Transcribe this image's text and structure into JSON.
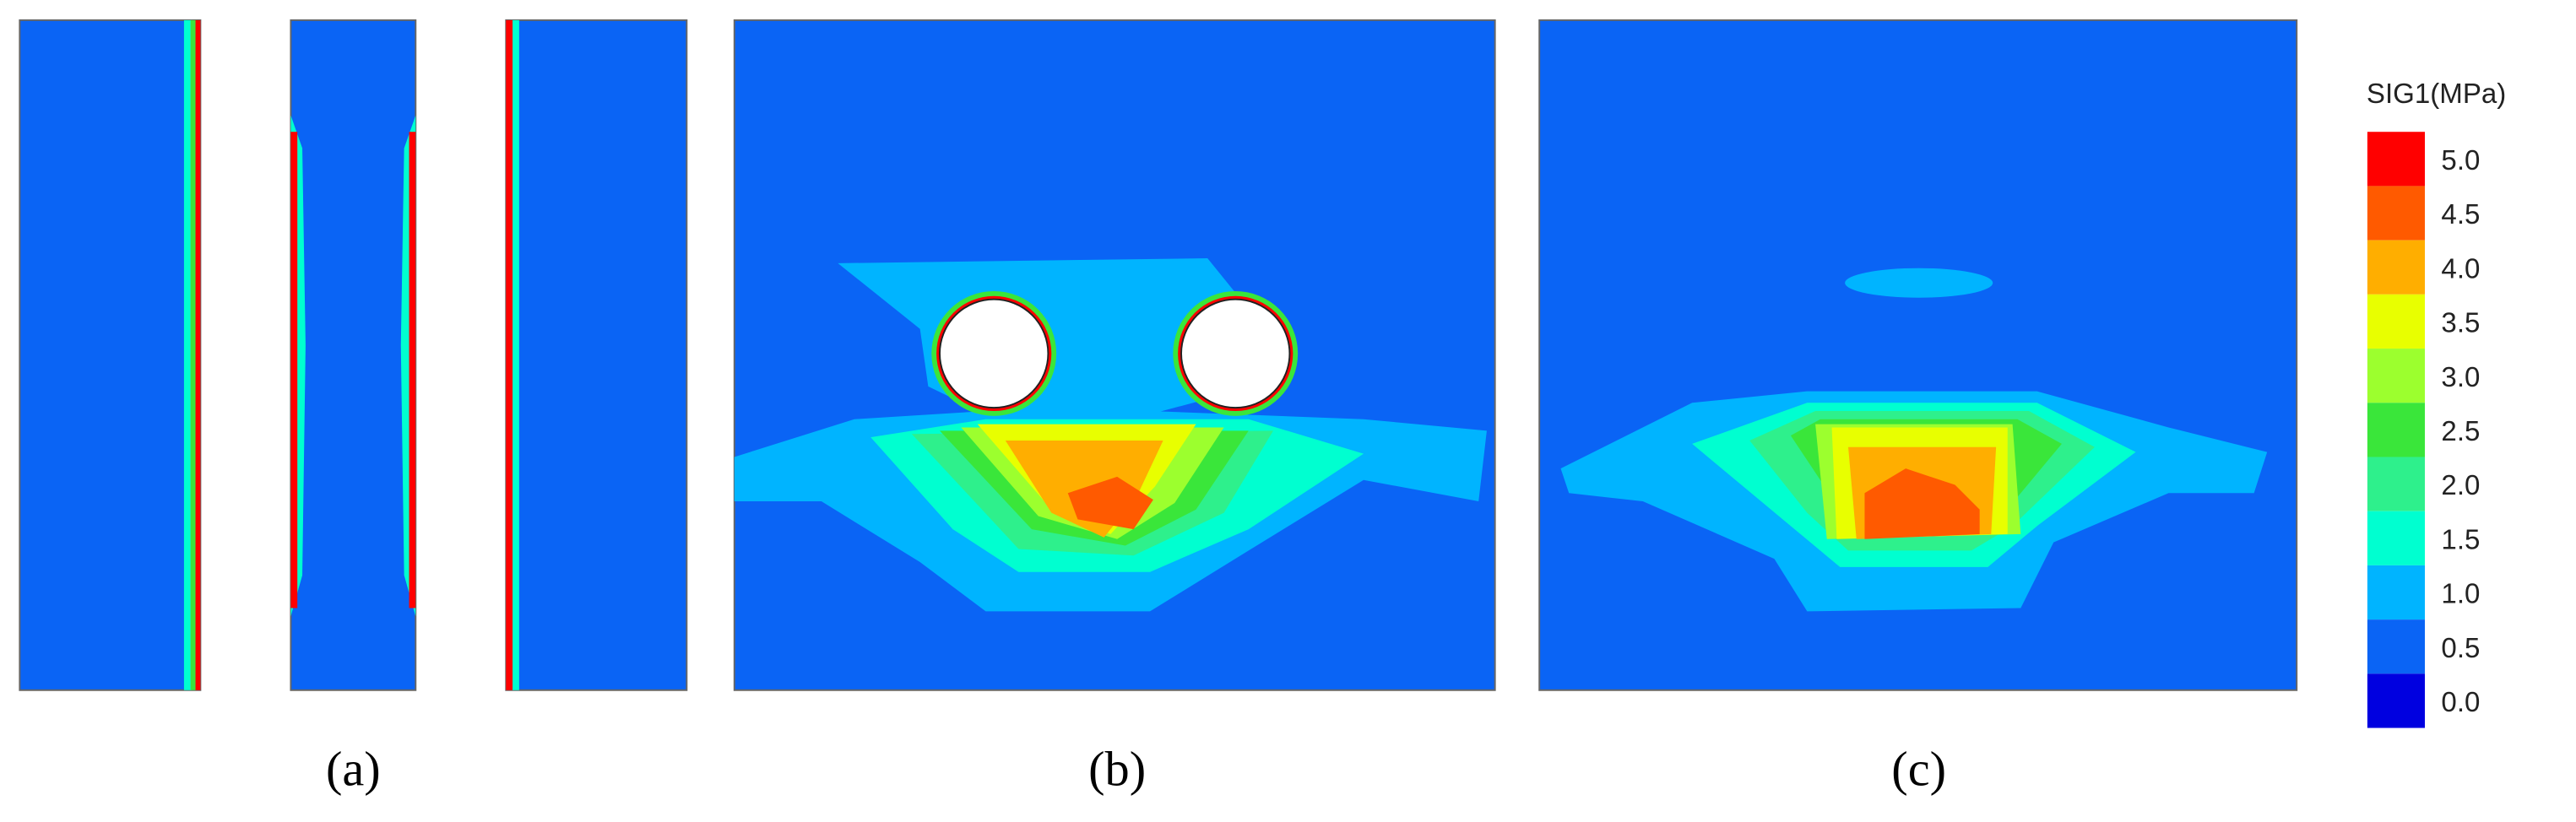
{
  "panels": [
    {
      "label": "(a)"
    },
    {
      "label": "(b)"
    },
    {
      "label": "(c)"
    }
  ],
  "legend": {
    "title": "SIG1(MPa)",
    "items": [
      {
        "label": "5.0",
        "color": "#ff0000"
      },
      {
        "label": "4.5",
        "color": "#ff5a00"
      },
      {
        "label": "4.0",
        "color": "#ffae00"
      },
      {
        "label": "3.5",
        "color": "#e8ff00"
      },
      {
        "label": "3.0",
        "color": "#9cff2e"
      },
      {
        "label": "2.5",
        "color": "#3ae63a"
      },
      {
        "label": "2.0",
        "color": "#2ef08c"
      },
      {
        "label": "1.5",
        "color": "#00ffd0"
      },
      {
        "label": "1.0",
        "color": "#00b4ff"
      },
      {
        "label": "0.5",
        "color": "#0a64f5"
      },
      {
        "label": "0.0",
        "color": "#0000e0"
      }
    ]
  }
}
